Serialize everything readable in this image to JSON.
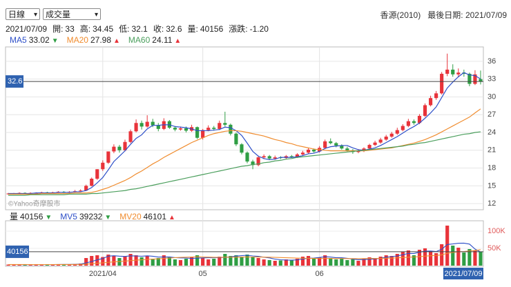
{
  "header": {
    "period": "日線",
    "indicator": "成交量",
    "stock": "香源(2010)",
    "last_date_label": "最後日期:"
  },
  "info": {
    "open": "開:",
    "high": "高:",
    "low": "低:",
    "close": "收:",
    "volume": "量:",
    "change_label": "漲跌:",
    "change": {
      "value": -1.2,
      "label": "-1.20"
    }
  },
  "watermark": "©Yahoo奇摩股市",
  "chart_data": [
    {
      "type": "candlestick",
      "up_color": "#e8333a",
      "down_color": "#2f9e44",
      "grid": true,
      "categories": [
        null,
        null,
        null,
        null,
        null,
        null,
        null,
        null,
        null,
        null,
        null,
        null,
        null,
        null,
        null,
        null,
        null,
        "2021/04",
        null,
        null,
        null,
        null,
        null,
        null,
        null,
        null,
        null,
        null,
        null,
        null,
        null,
        null,
        null,
        null,
        null,
        "05",
        null,
        null,
        null,
        null,
        null,
        null,
        null,
        null,
        null,
        null,
        null,
        null,
        null,
        null,
        null,
        null,
        null,
        null,
        null,
        null,
        "06",
        null,
        null,
        null,
        null,
        null,
        null,
        null,
        null,
        null,
        null,
        null,
        null,
        null,
        null,
        null,
        null,
        null,
        null,
        null,
        null,
        null,
        null,
        null,
        null,
        null,
        null,
        null,
        null,
        "2021/07/09"
      ],
      "open": [
        13.6,
        13.7,
        13.7,
        13.8,
        13.7,
        13.8,
        13.8,
        13.9,
        13.8,
        13.9,
        14.0,
        13.9,
        14.0,
        14.1,
        14.2,
        15.0,
        16.2,
        17.8,
        18.9,
        20.8,
        21.6,
        21.0,
        22.4,
        24.2,
        25.6,
        25.0,
        25.8,
        25.2,
        24.6,
        25.9,
        24.8,
        24.5,
        24.7,
        24.3,
        24.9,
        23.1,
        24.4,
        24.8,
        24.6,
        25.6,
        25.3,
        23.8,
        22.0,
        20.6,
        19.1,
        18.5,
        19.8,
        20.0,
        19.6,
        19.8,
        19.7,
        20.0,
        19.9,
        20.3,
        20.6,
        21.1,
        20.8,
        21.4,
        22.5,
        22.2,
        21.8,
        21.3,
        21.0,
        20.7,
        20.9,
        21.3,
        21.9,
        22.3,
        22.8,
        23.3,
        23.8,
        24.4,
        25.1,
        25.9,
        25.6,
        26.8,
        28.6,
        29.8,
        30.6,
        33.9,
        34.6,
        33.8,
        34.1,
        33.9,
        32.2,
        33
      ],
      "high": [
        13.8,
        13.8,
        13.9,
        13.9,
        13.9,
        13.9,
        14.0,
        14.0,
        14.0,
        14.1,
        14.1,
        14.1,
        14.3,
        14.4,
        15.2,
        16.4,
        17.8,
        19.3,
        20.8,
        22.0,
        21.9,
        22.8,
        24.5,
        26.2,
        26.0,
        26.9,
        26.3,
        25.6,
        26.4,
        26.1,
        25.1,
        25.0,
        25.0,
        25.3,
        25.0,
        24.6,
        25.2,
        25.1,
        26.0,
        27.5,
        25.5,
        24.0,
        22.2,
        20.8,
        19.4,
        20.1,
        20.3,
        20.2,
        20.1,
        20.0,
        20.2,
        20.2,
        20.5,
        20.9,
        21.4,
        21.3,
        21.7,
        22.8,
        23.0,
        22.4,
        22.0,
        21.6,
        21.2,
        21.2,
        21.5,
        22.1,
        22.6,
        23.1,
        23.6,
        24.1,
        24.8,
        25.4,
        26.3,
        26.2,
        27.1,
        28.9,
        30.2,
        31.0,
        34.2,
        37.3,
        35.5,
        34.8,
        34.6,
        34.1,
        34.5,
        34.45
      ],
      "low": [
        13.5,
        13.6,
        13.6,
        13.6,
        13.6,
        13.7,
        13.7,
        13.7,
        13.7,
        13.8,
        13.8,
        13.8,
        13.9,
        14.0,
        14.1,
        14.9,
        16.0,
        17.5,
        18.7,
        20.5,
        20.6,
        20.8,
        22.2,
        24.0,
        24.5,
        24.8,
        24.9,
        24.2,
        24.4,
        24.6,
        24.2,
        24.3,
        24.0,
        24.1,
        22.9,
        22.8,
        24.2,
        24.3,
        24.4,
        25.0,
        23.5,
        21.7,
        20.3,
        18.8,
        17.8,
        18.3,
        19.5,
        19.4,
        19.4,
        19.5,
        19.5,
        19.7,
        19.7,
        20.1,
        20.4,
        20.6,
        20.6,
        21.2,
        22.0,
        21.5,
        21.1,
        20.8,
        20.4,
        20.5,
        20.7,
        21.1,
        21.7,
        22.1,
        22.6,
        23.1,
        23.6,
        24.2,
        24.9,
        25.3,
        25.4,
        26.6,
        28.4,
        29.5,
        30.4,
        33.5,
        33.4,
        33.3,
        33.4,
        31.8,
        32.0,
        32.1
      ],
      "close": [
        13.7,
        13.7,
        13.8,
        13.7,
        13.8,
        13.8,
        13.9,
        13.8,
        13.9,
        14.0,
        13.9,
        14.0,
        14.1,
        14.2,
        15.0,
        16.2,
        17.8,
        18.9,
        20.8,
        21.6,
        21.0,
        22.4,
        24.2,
        25.6,
        25.0,
        25.8,
        25.2,
        24.6,
        25.9,
        24.8,
        24.5,
        24.7,
        24.3,
        24.9,
        23.1,
        24.4,
        24.8,
        24.6,
        25.6,
        25.3,
        23.8,
        22.0,
        20.6,
        19.1,
        18.5,
        19.8,
        20.0,
        19.6,
        19.8,
        19.7,
        20.0,
        19.9,
        20.3,
        20.6,
        21.1,
        20.8,
        21.4,
        22.5,
        22.2,
        21.8,
        21.3,
        21.0,
        20.7,
        20.9,
        21.3,
        21.9,
        22.3,
        22.8,
        23.3,
        23.8,
        24.4,
        25.1,
        25.9,
        25.6,
        26.8,
        28.6,
        29.8,
        30.6,
        33.9,
        34.6,
        33.8,
        34.1,
        33.9,
        32.2,
        33.8,
        32.6
      ],
      "series": [
        {
          "name": "MA5",
          "color": "#2d4fc8",
          "arrow": "▼",
          "values": [
            13.7,
            13.7,
            13.7,
            13.7,
            13.7,
            13.8,
            13.8,
            13.8,
            13.8,
            13.9,
            13.9,
            13.9,
            14.0,
            14.0,
            14.2,
            14.7,
            15.5,
            16.4,
            17.7,
            19.1,
            20.0,
            20.9,
            22.0,
            23.0,
            23.6,
            24.6,
            25.2,
            25.2,
            25.3,
            25.3,
            25.0,
            24.9,
            24.8,
            24.6,
            24.3,
            24.3,
            24.3,
            24.4,
            24.5,
            24.9,
            24.8,
            24.3,
            23.5,
            22.2,
            20.8,
            20.0,
            19.6,
            19.4,
            19.5,
            19.8,
            19.8,
            19.8,
            19.9,
            20.1,
            20.4,
            20.5,
            20.8,
            21.3,
            21.6,
            21.7,
            21.8,
            21.8,
            21.4,
            21.1,
            21.0,
            21.2,
            21.4,
            21.8,
            22.3,
            22.8,
            23.3,
            23.9,
            24.5,
            25.0,
            25.6,
            26.4,
            27.3,
            28.3,
            29.9,
            31.5,
            32.5,
            33.4,
            34.1,
            33.7,
            33.6,
            33.02
          ]
        },
        {
          "name": "MA20",
          "color": "#f08c2e",
          "arrow": "▲",
          "values": [
            13.6,
            13.6,
            13.6,
            13.6,
            13.6,
            13.6,
            13.7,
            13.7,
            13.7,
            13.7,
            13.7,
            13.7,
            13.8,
            13.8,
            13.8,
            13.9,
            14.1,
            14.4,
            14.7,
            15.1,
            15.5,
            15.9,
            16.4,
            17.0,
            17.5,
            18.1,
            18.7,
            19.2,
            19.8,
            20.3,
            20.8,
            21.3,
            21.8,
            22.3,
            22.7,
            23.1,
            23.5,
            23.8,
            24.0,
            24.2,
            24.3,
            24.3,
            24.2,
            24.0,
            23.8,
            23.6,
            23.4,
            23.1,
            22.8,
            22.6,
            22.3,
            22.1,
            21.8,
            21.6,
            21.4,
            21.2,
            21.1,
            21.0,
            20.9,
            20.9,
            20.9,
            20.9,
            20.9,
            20.9,
            20.9,
            21.0,
            21.1,
            21.2,
            21.3,
            21.4,
            21.6,
            21.8,
            22.0,
            22.2,
            22.5,
            22.8,
            23.2,
            23.6,
            24.1,
            24.6,
            25.1,
            25.6,
            26.1,
            26.6,
            27.3,
            27.98
          ]
        },
        {
          "name": "MA60",
          "color": "#4a9e5c",
          "arrow": "▲",
          "values": [
            13.4,
            13.4,
            13.4,
            13.4,
            13.5,
            13.5,
            13.5,
            13.5,
            13.5,
            13.5,
            13.5,
            13.6,
            13.6,
            13.6,
            13.6,
            13.7,
            13.7,
            13.8,
            13.9,
            14.0,
            14.1,
            14.2,
            14.4,
            14.5,
            14.7,
            14.9,
            15.1,
            15.3,
            15.5,
            15.7,
            15.9,
            16.1,
            16.3,
            16.5,
            16.7,
            16.9,
            17.1,
            17.3,
            17.5,
            17.7,
            17.9,
            18.1,
            18.3,
            18.4,
            18.6,
            18.7,
            18.9,
            19.0,
            19.2,
            19.3,
            19.5,
            19.6,
            19.8,
            19.9,
            20.0,
            20.1,
            20.2,
            20.3,
            20.4,
            20.5,
            20.6,
            20.7,
            20.8,
            20.9,
            21.0,
            21.1,
            21.2,
            21.3,
            21.4,
            21.5,
            21.6,
            21.7,
            21.9,
            22.0,
            22.2,
            22.3,
            22.5,
            22.7,
            22.9,
            23.1,
            23.3,
            23.5,
            23.7,
            23.8,
            24.0,
            24.11
          ]
        }
      ],
      "ylim": [
        11.2,
        38.2
      ],
      "yticks": [
        12,
        15,
        18,
        21,
        24,
        27,
        30,
        33,
        36
      ]
    },
    {
      "type": "bar",
      "name": "量",
      "arrow": "▼",
      "values": [
        3000,
        2500,
        3500,
        2000,
        3000,
        2800,
        3200,
        2600,
        3000,
        4000,
        3500,
        3800,
        5000,
        6000,
        22000,
        28000,
        30000,
        25000,
        32000,
        28000,
        22000,
        26000,
        34000,
        30000,
        24000,
        28000,
        20000,
        22000,
        30000,
        26000,
        18000,
        16000,
        20000,
        24000,
        30000,
        22000,
        18000,
        20000,
        26000,
        34000,
        28000,
        30000,
        26000,
        32000,
        24000,
        22000,
        18000,
        16000,
        14000,
        15000,
        18000,
        16000,
        20000,
        26000,
        28000,
        20000,
        24000,
        30000,
        22000,
        18000,
        20000,
        16000,
        18000,
        14000,
        20000,
        24000,
        22000,
        26000,
        30000,
        28000,
        34000,
        40000,
        44000,
        30000,
        46000,
        50000,
        42000,
        36000,
        62000,
        116000,
        58000,
        52000,
        38000,
        48000,
        44000,
        40156
      ],
      "series": [
        {
          "name": "MV5",
          "color": "#2d4fc8",
          "arrow": "▼",
          "values": [
            3000,
            3000,
            2800,
            2700,
            2800,
            2800,
            2800,
            2900,
            2900,
            3100,
            3300,
            3400,
            3900,
            4500,
            7700,
            12000,
            16600,
            20600,
            27400,
            28600,
            27400,
            26600,
            28400,
            28000,
            27200,
            28400,
            27200,
            24800,
            24800,
            25200,
            23200,
            22400,
            22000,
            20800,
            21600,
            22400,
            22800,
            22800,
            23200,
            24000,
            25200,
            27600,
            28800,
            30000,
            28000,
            26800,
            24400,
            22400,
            18800,
            17000,
            16200,
            15800,
            16600,
            19000,
            21600,
            22000,
            23600,
            25600,
            24800,
            22800,
            22800,
            21200,
            18800,
            17200,
            17600,
            18400,
            19600,
            21200,
            24400,
            26000,
            28000,
            31600,
            35200,
            35200,
            38800,
            42000,
            42400,
            40800,
            47200,
            61200,
            62800,
            64800,
            65200,
            62400,
            48000,
            39232
          ]
        },
        {
          "name": "MV20",
          "color": "#f08c2e",
          "arrow": "▲",
          "values": [
            3200,
            3200,
            3100,
            3100,
            3000,
            3000,
            3000,
            3000,
            3000,
            3100,
            3100,
            3200,
            3300,
            3400,
            4300,
            5500,
            6800,
            8000,
            9500,
            10800,
            11800,
            13000,
            14500,
            15800,
            16800,
            18000,
            18800,
            19700,
            21000,
            22000,
            23000,
            23800,
            24400,
            25000,
            25400,
            25000,
            24600,
            24200,
            24000,
            24300,
            24500,
            24600,
            24800,
            25000,
            25000,
            24800,
            24600,
            24300,
            23800,
            23400,
            22900,
            22300,
            21800,
            21500,
            21200,
            20800,
            20600,
            20800,
            20700,
            20600,
            20500,
            20400,
            20300,
            20200,
            20400,
            20600,
            20800,
            21000,
            21400,
            21800,
            22500,
            23300,
            24300,
            25000,
            26200,
            27500,
            28600,
            29500,
            31200,
            35800,
            38000,
            40000,
            41000,
            42500,
            44000,
            46101
          ]
        }
      ],
      "ylim": [
        0,
        126000
      ],
      "yticks": [
        {
          "value": 50000,
          "label": "50K"
        },
        {
          "value": 100000,
          "label": "100K"
        }
      ]
    }
  ]
}
